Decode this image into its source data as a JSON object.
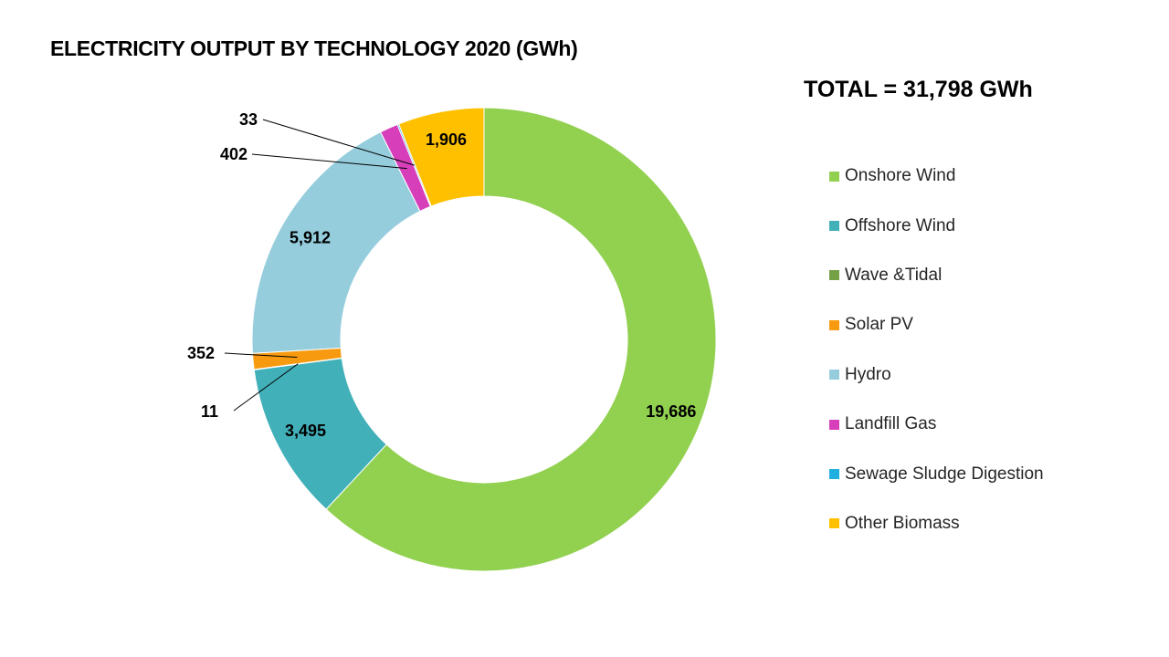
{
  "chart_data": {
    "type": "pie",
    "variant": "donut",
    "title": "ELECTRICITY OUTPUT BY TECHNOLOGY 2020 (GWh)",
    "total_label": "TOTAL = 31,798 GWh",
    "legend_position": "right",
    "series": [
      {
        "name": "Onshore Wind",
        "value": 19686,
        "label": "19,686",
        "color": "#92d050"
      },
      {
        "name": "Offshore Wind",
        "value": 3495,
        "label": "3,495",
        "color": "#41b0b9"
      },
      {
        "name": "Wave &Tidal",
        "value": 11,
        "label": "11",
        "color": "#76a046"
      },
      {
        "name": "Solar PV",
        "value": 352,
        "label": "352",
        "color": "#f79a0f"
      },
      {
        "name": "Hydro",
        "value": 5912,
        "label": "5,912",
        "color": "#95cddd"
      },
      {
        "name": "Landfill Gas",
        "value": 402,
        "label": "402",
        "color": "#d63fb9"
      },
      {
        "name": "Sewage Sludge Digestion",
        "value": 33,
        "label": "33",
        "color": "#1fb0e0"
      },
      {
        "name": "Other Biomass",
        "value": 1906,
        "label": "1,906",
        "color": "#ffc000"
      }
    ]
  }
}
